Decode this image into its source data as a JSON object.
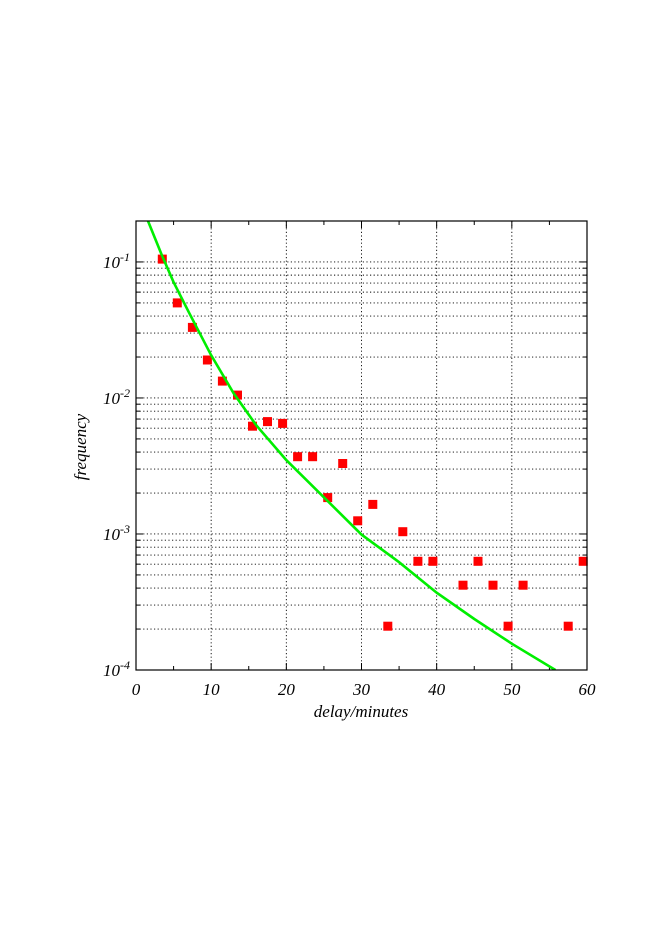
{
  "chart_data": {
    "type": "scatter",
    "title": "",
    "xlabel": "delay/minutes",
    "ylabel": "frequency",
    "xlim": [
      0,
      60
    ],
    "ylim": [
      0.0001,
      0.2
    ],
    "yscale": "log",
    "grid": true,
    "x_ticks": [
      {
        "value": 0,
        "label": "0"
      },
      {
        "value": 10,
        "label": "10"
      },
      {
        "value": 20,
        "label": "20"
      },
      {
        "value": 30,
        "label": "30"
      },
      {
        "value": 40,
        "label": "40"
      },
      {
        "value": 50,
        "label": "50"
      },
      {
        "value": 60,
        "label": "60"
      }
    ],
    "y_ticks": [
      {
        "value": 0.1,
        "base": "10",
        "exp": "-1"
      },
      {
        "value": 0.01,
        "base": "10",
        "exp": "-2"
      },
      {
        "value": 0.001,
        "base": "10",
        "exp": "-3"
      },
      {
        "value": 0.0001,
        "base": "10",
        "exp": "-4"
      }
    ],
    "series": [
      {
        "kind": "points",
        "marker": "square",
        "color": "#ff0000",
        "points": [
          {
            "x": 3.5,
            "y": 0.105
          },
          {
            "x": 5.5,
            "y": 0.05
          },
          {
            "x": 7.5,
            "y": 0.033
          },
          {
            "x": 9.5,
            "y": 0.019
          },
          {
            "x": 11.5,
            "y": 0.0133
          },
          {
            "x": 13.5,
            "y": 0.0105
          },
          {
            "x": 15.5,
            "y": 0.0062
          },
          {
            "x": 17.5,
            "y": 0.0067
          },
          {
            "x": 19.5,
            "y": 0.0065
          },
          {
            "x": 21.5,
            "y": 0.0037
          },
          {
            "x": 23.5,
            "y": 0.0037
          },
          {
            "x": 25.5,
            "y": 0.00185
          },
          {
            "x": 27.5,
            "y": 0.0033
          },
          {
            "x": 29.5,
            "y": 0.00125
          },
          {
            "x": 31.5,
            "y": 0.00165
          },
          {
            "x": 33.5,
            "y": 0.00021
          },
          {
            "x": 35.5,
            "y": 0.00104
          },
          {
            "x": 37.5,
            "y": 0.00063
          },
          {
            "x": 39.5,
            "y": 0.00063
          },
          {
            "x": 43.5,
            "y": 0.00042
          },
          {
            "x": 45.5,
            "y": 0.00063
          },
          {
            "x": 47.5,
            "y": 0.00042
          },
          {
            "x": 49.5,
            "y": 0.00021
          },
          {
            "x": 51.5,
            "y": 0.00042
          },
          {
            "x": 57.5,
            "y": 0.00021
          },
          {
            "x": 59.5,
            "y": 0.00063
          }
        ]
      },
      {
        "kind": "line",
        "color": "#00ee00",
        "points": [
          {
            "x": 1.6,
            "y": 0.2
          },
          {
            "x": 3.5,
            "y": 0.11
          },
          {
            "x": 5.0,
            "y": 0.071
          },
          {
            "x": 7.0,
            "y": 0.043
          },
          {
            "x": 10.0,
            "y": 0.0206
          },
          {
            "x": 13.0,
            "y": 0.0108
          },
          {
            "x": 16.0,
            "y": 0.0063
          },
          {
            "x": 20.0,
            "y": 0.00349
          },
          {
            "x": 25.0,
            "y": 0.00186
          },
          {
            "x": 30.0,
            "y": 0.00099
          },
          {
            "x": 35.0,
            "y": 0.00062
          },
          {
            "x": 40.0,
            "y": 0.00037
          },
          {
            "x": 45.0,
            "y": 0.000237
          },
          {
            "x": 50.0,
            "y": 0.000156
          },
          {
            "x": 55.8,
            "y": 0.0001
          }
        ]
      }
    ]
  }
}
